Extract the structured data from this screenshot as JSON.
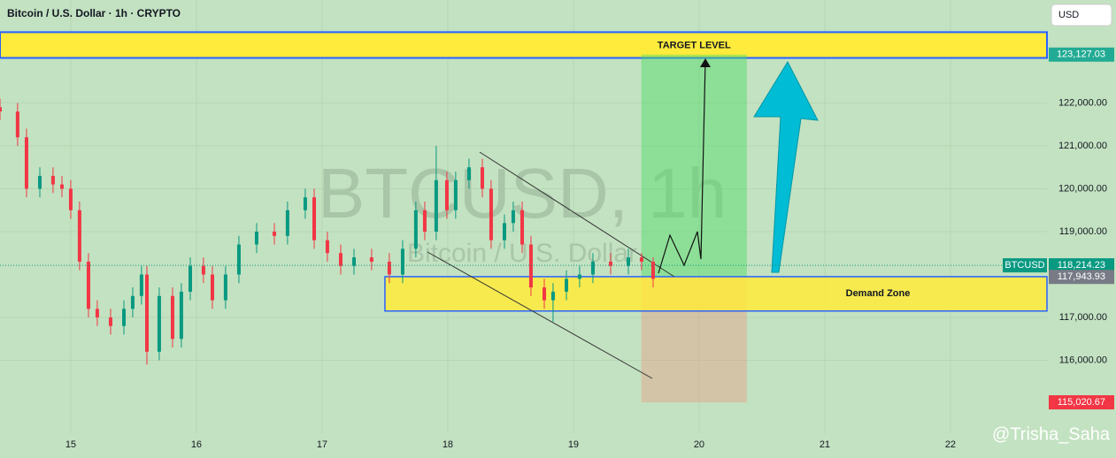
{
  "header": {
    "symbol_title": "Bitcoin / U.S. Dollar · 1h · CRYPTO",
    "currency_button": "USD",
    "watermark": "@Trisha_Saha"
  },
  "chart_data": {
    "type": "candlestick",
    "watermark_symbol": "BTCUSD, 1h",
    "watermark_name": "Bitcoin / U.S. Dollar",
    "colors": {
      "up": "#089981",
      "down": "#f23645"
    },
    "xlim": [
      14.437,
      22.768
    ],
    "ylim": [
      114300,
      124400
    ],
    "xticks": [
      15,
      16,
      17,
      18,
      19,
      20,
      21,
      22
    ],
    "yticks": [
      {
        "value": 116000,
        "label": "116,000.00"
      },
      {
        "value": 117000,
        "label": "117,000.00"
      },
      {
        "value": 119000,
        "label": "119,000.00"
      },
      {
        "value": 120000,
        "label": "120,000.00"
      },
      {
        "value": 121000,
        "label": "121,000.00"
      },
      {
        "value": 122000,
        "label": "122,000.00"
      }
    ],
    "candles": {
      "x": [
        14.437,
        14.577,
        14.648,
        14.754,
        14.859,
        14.93,
        15.0,
        15.07,
        15.141,
        15.211,
        15.317,
        15.423,
        15.493,
        15.563,
        15.606,
        15.704,
        15.81,
        15.88,
        15.951,
        16.056,
        16.127,
        16.232,
        16.338,
        16.479,
        16.62,
        16.725,
        16.866,
        16.937,
        17.042,
        17.148,
        17.254,
        17.394,
        17.535,
        17.641,
        17.746,
        17.817,
        17.908,
        17.993,
        18.063,
        18.169,
        18.275,
        18.345,
        18.451,
        18.521,
        18.592,
        18.662,
        18.768,
        18.838,
        18.944,
        19.049,
        19.155,
        19.296,
        19.437,
        19.542,
        19.634
      ],
      "open": [
        121900,
        121800,
        121200,
        120000,
        120300,
        120100,
        120000,
        119500,
        118300,
        117200,
        117000,
        116800,
        117200,
        117500,
        118000,
        116200,
        117500,
        116500,
        117600,
        118200,
        118000,
        117400,
        118000,
        118700,
        119000,
        118900,
        119500,
        119800,
        118800,
        118500,
        118200,
        118400,
        118300,
        118000,
        118600,
        119500,
        119000,
        120200,
        119500,
        120200,
        120500,
        120000,
        118800,
        119200,
        119500,
        118700,
        117700,
        117400,
        117600,
        117900,
        118000,
        118300,
        118200,
        118400,
        118300
      ],
      "high": [
        122100,
        122000,
        121400,
        120500,
        120500,
        120300,
        120200,
        119700,
        118500,
        117400,
        117200,
        117400,
        117700,
        118200,
        118200,
        117700,
        117700,
        117800,
        118400,
        118400,
        118200,
        118200,
        118900,
        119200,
        119200,
        119700,
        120000,
        120000,
        119000,
        118700,
        118600,
        118600,
        118500,
        118800,
        119700,
        119700,
        121000,
        120400,
        120400,
        120700,
        120700,
        120200,
        119400,
        119700,
        119700,
        118900,
        117900,
        117800,
        118100,
        118200,
        118500,
        118500,
        118600,
        118500,
        118400
      ],
      "low": [
        121600,
        121000,
        119800,
        119800,
        119900,
        119800,
        119300,
        118100,
        117000,
        116800,
        116600,
        116600,
        117000,
        117300,
        115900,
        116000,
        116300,
        116300,
        117400,
        117800,
        117200,
        117200,
        117800,
        118500,
        118700,
        118700,
        119300,
        118600,
        118300,
        118000,
        118000,
        118100,
        117800,
        117800,
        118400,
        118800,
        118800,
        119300,
        119300,
        120000,
        119800,
        118600,
        118600,
        119000,
        118500,
        117500,
        117200,
        116900,
        117400,
        117700,
        117800,
        118000,
        118000,
        118100,
        117700
      ],
      "close": [
        121800,
        121200,
        120000,
        120300,
        120100,
        120000,
        119500,
        118300,
        117200,
        117000,
        116800,
        117200,
        117500,
        118000,
        116200,
        117500,
        116500,
        117600,
        118200,
        118000,
        117400,
        118000,
        118700,
        119000,
        118900,
        119500,
        119800,
        118800,
        118500,
        118200,
        118400,
        118300,
        118000,
        118600,
        119500,
        119000,
        120200,
        119500,
        120200,
        120500,
        120000,
        118800,
        119200,
        119500,
        118700,
        117700,
        117400,
        117600,
        117900,
        118000,
        118300,
        118200,
        118400,
        118300,
        117900
      ]
    },
    "target_zone": {
      "label": "TARGET LEVEL",
      "range": [
        123050,
        123650
      ],
      "color": "#ffeb3b"
    },
    "demand_zone": {
      "label": "Demand Zone",
      "x": 17.5,
      "range": [
        117150,
        117950
      ],
      "color": "#ffeb3b"
    },
    "position": {
      "x": [
        19.54,
        20.38
      ]
    },
    "price_labels": [
      {
        "value": 123127.03,
        "label": "123,127.03",
        "color": "#22ab94"
      },
      {
        "value": 118214.23,
        "label": "118,214.23",
        "color": "#089981",
        "tag": "BTCUSD"
      },
      {
        "value": 117943.93,
        "label": "117,943.93",
        "color": "#787b86"
      },
      {
        "value": 115020.67,
        "label": "115,020.67",
        "color": "#f23645"
      }
    ]
  }
}
